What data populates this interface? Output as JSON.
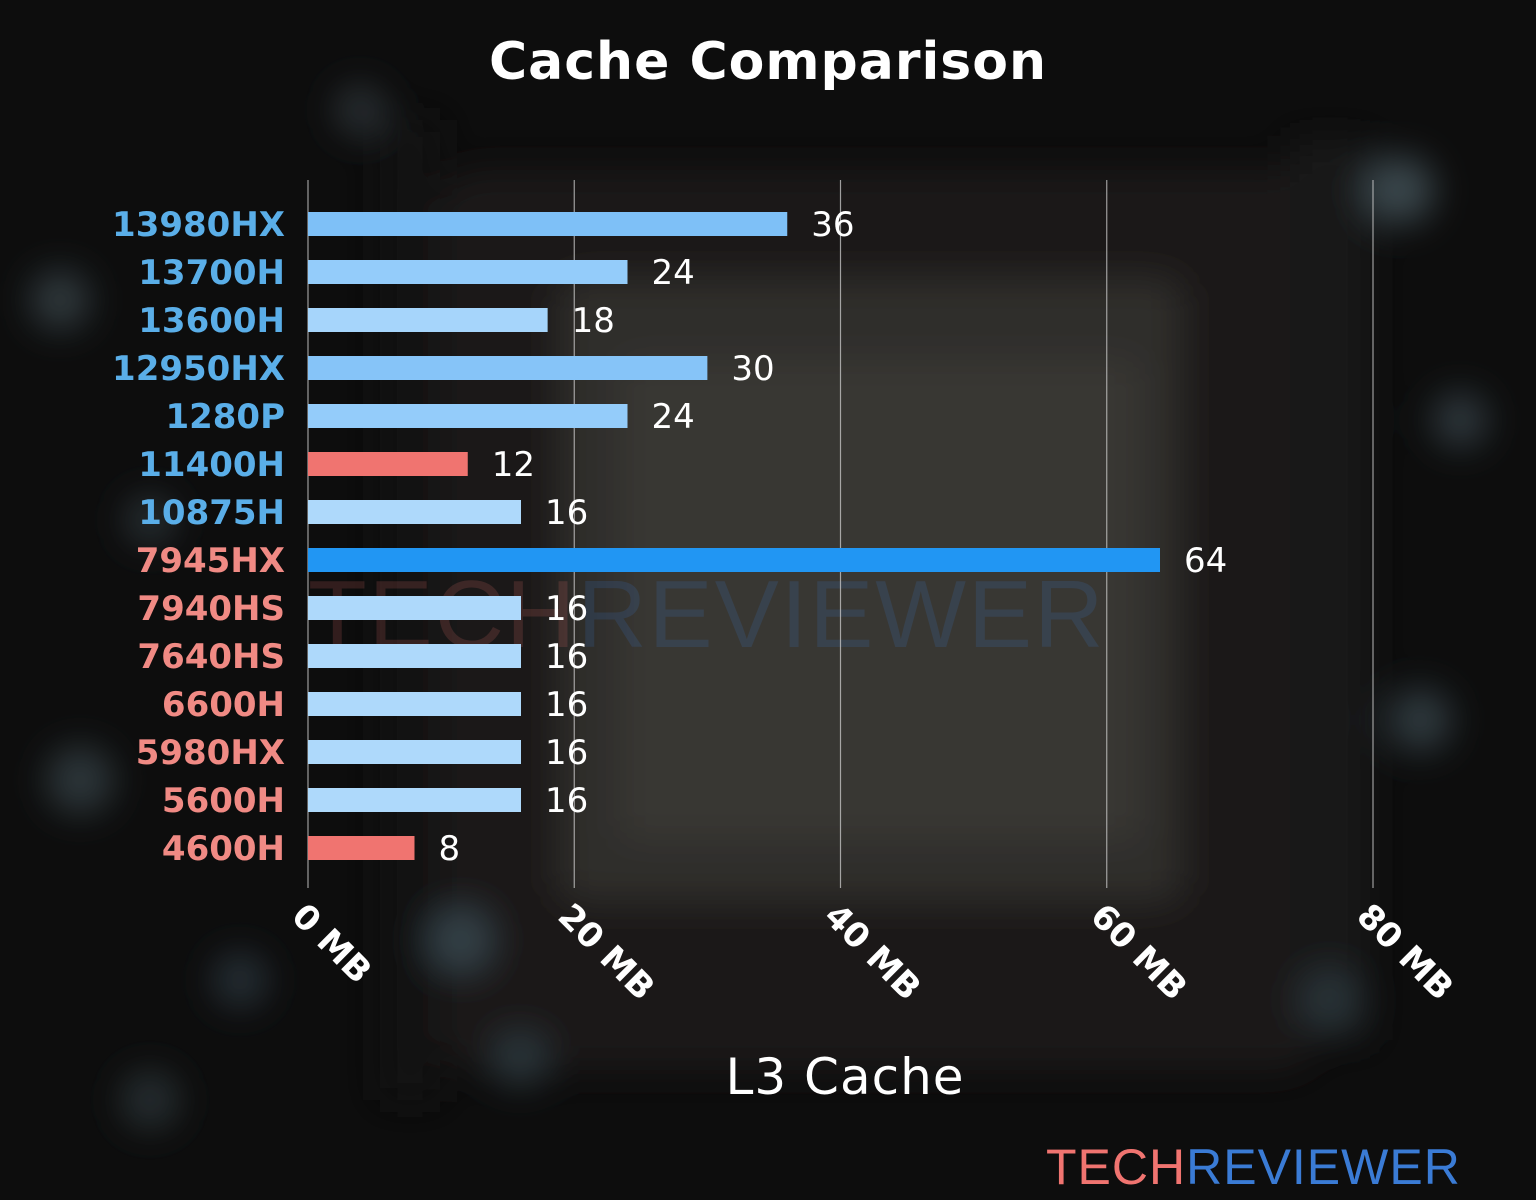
{
  "chart_data": {
    "type": "bar",
    "orientation": "horizontal",
    "title": "Cache Comparison",
    "xlabel": "L3 Cache",
    "ylabel": "",
    "xlim": [
      0,
      80
    ],
    "x_ticks": [
      "0 MB",
      "20 MB",
      "40 MB",
      "60 MB",
      "80 MB"
    ],
    "x_tick_values": [
      0,
      20,
      40,
      60,
      80
    ],
    "grid": true,
    "categories": [
      "13980HX",
      "13700H",
      "13600H",
      "12950HX",
      "1280P",
      "11400H",
      "10875H",
      "7945HX",
      "7940HS",
      "7640HS",
      "6600H",
      "5980HX",
      "5600H",
      "4600H"
    ],
    "values": [
      36,
      24,
      18,
      30,
      24,
      12,
      16,
      64,
      16,
      16,
      16,
      16,
      16,
      8
    ],
    "category_colors": [
      "#5aaee8",
      "#5aaee8",
      "#5aaee8",
      "#5aaee8",
      "#5aaee8",
      "#5aaee8",
      "#5aaee8",
      "#f08a84",
      "#f08a84",
      "#f08a84",
      "#f08a84",
      "#f08a84",
      "#f08a84",
      "#f08a84"
    ],
    "bar_colors": [
      "#7ec0f7",
      "#94ccfa",
      "#a6d5fb",
      "#86c4f8",
      "#94ccfa",
      "#f07470",
      "#aed9fb",
      "#2196f3",
      "#aed9fb",
      "#aed9fb",
      "#aed9fb",
      "#aed9fb",
      "#aed9fb",
      "#f07470"
    ]
  },
  "brand": {
    "part1": "TECH",
    "part2": "REVIEWER",
    "color1": "#f07470",
    "color2": "#3a7bd5"
  },
  "theme": {
    "background": "#161616",
    "text": "#ffffff",
    "grid": "#cccccc"
  }
}
